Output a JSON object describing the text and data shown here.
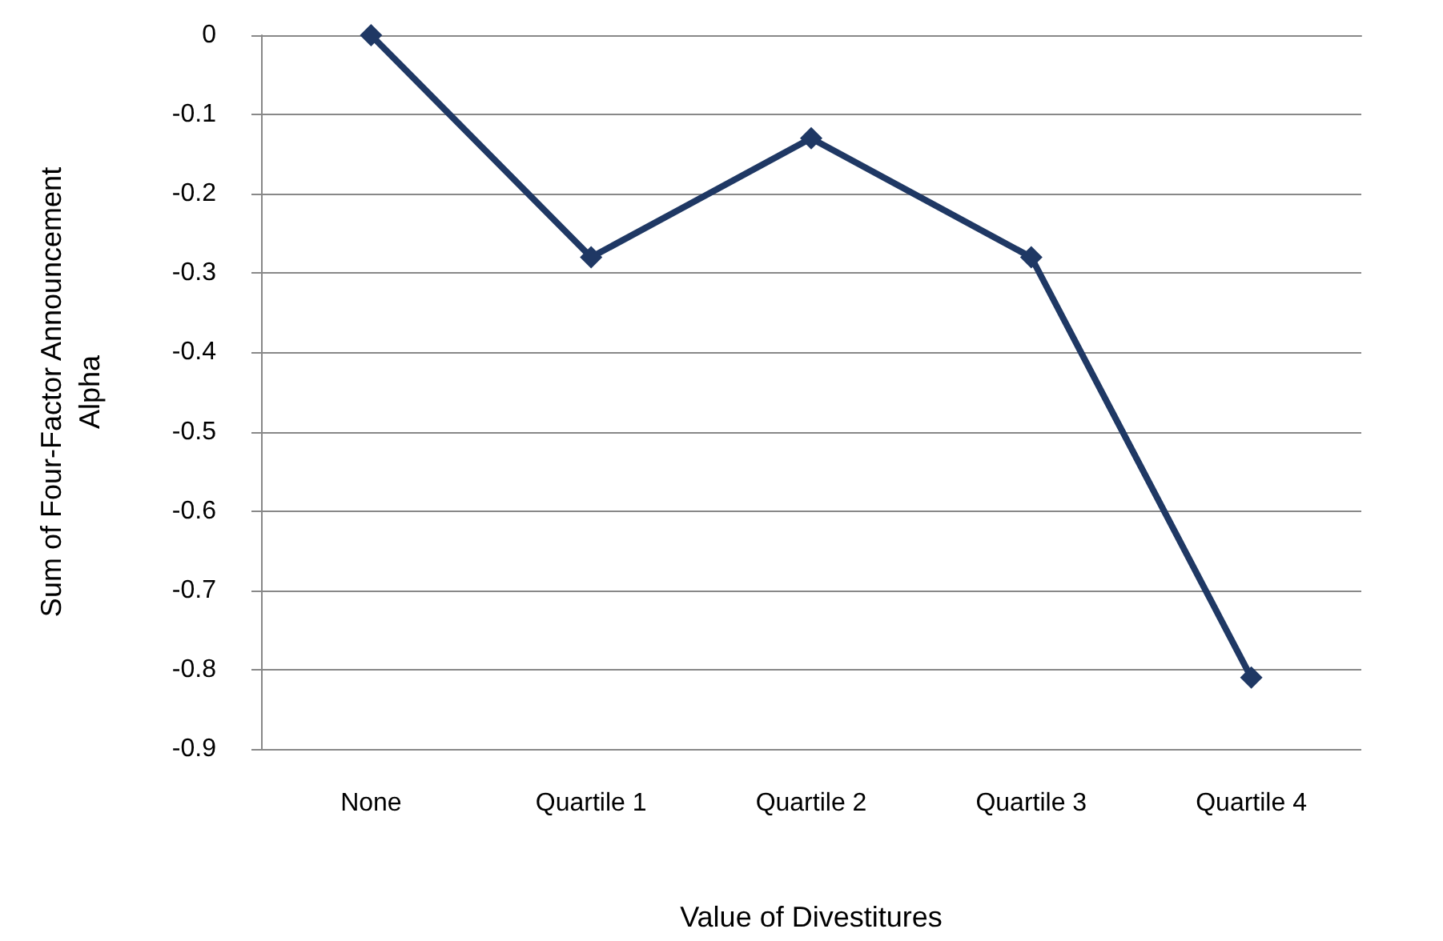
{
  "chart_data": {
    "type": "line",
    "xlabel": "Value of Divestitures",
    "ylabel": "Sum of Four-Factor Announcement Alpha",
    "categories": [
      "None",
      "Quartile 1",
      "Quartile 2",
      "Quartile 3",
      "Quartile 4"
    ],
    "series": [
      {
        "color": "#1f3864",
        "values": [
          0,
          -0.28,
          -0.13,
          -0.28,
          -0.81
        ]
      }
    ],
    "ylim": [
      -0.9,
      0
    ],
    "yticks": [
      0,
      -0.1,
      -0.2,
      -0.3,
      -0.4,
      -0.5,
      -0.6,
      -0.7,
      -0.8,
      -0.9
    ],
    "grid": "y",
    "marker": "diamond",
    "line_style": "solid"
  }
}
